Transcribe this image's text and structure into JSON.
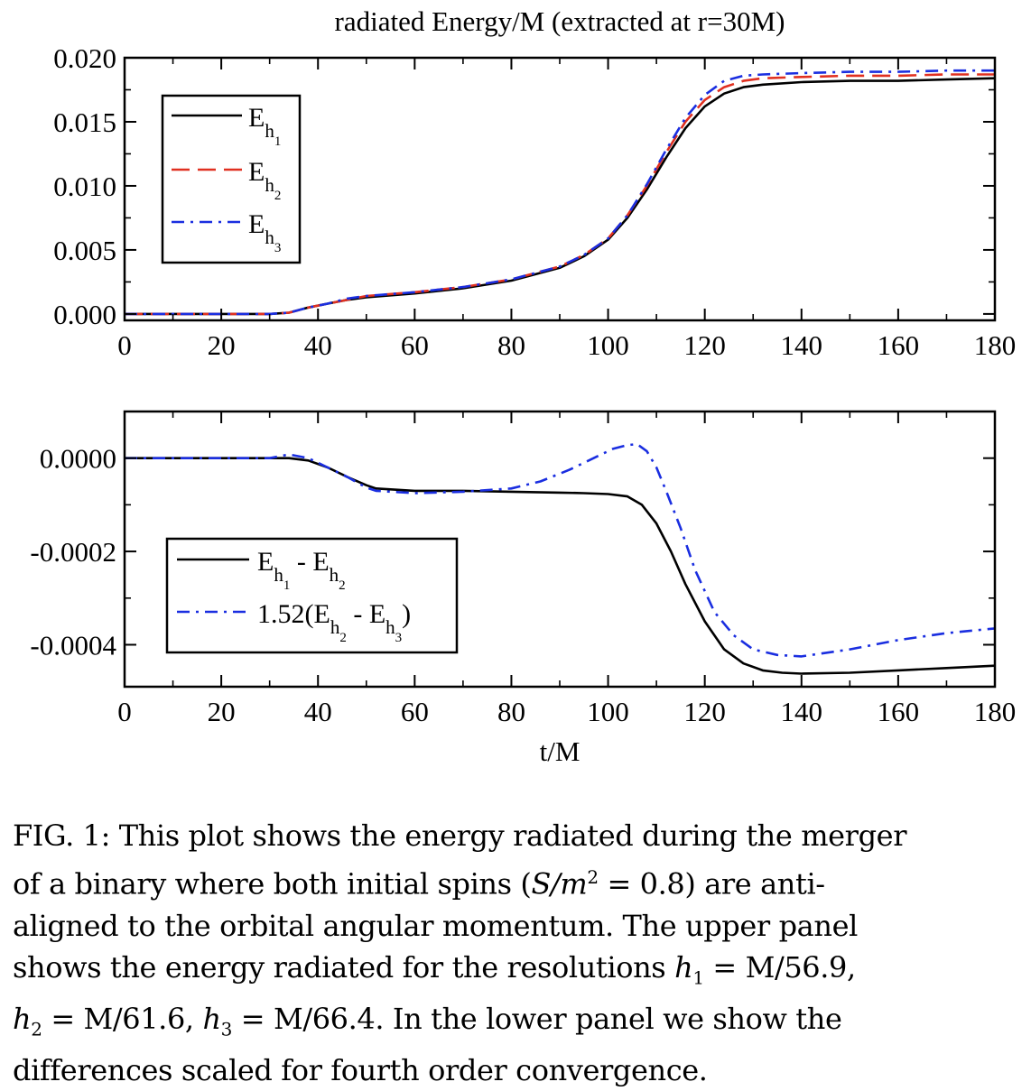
{
  "chart_data": [
    {
      "type": "line",
      "title": "radiated Energy/M (extracted at r=30M)",
      "xlabel": "",
      "ylabel": "",
      "xlim": [
        0,
        180
      ],
      "ylim": [
        -0.0005,
        0.02
      ],
      "xticks": [
        "0",
        "20",
        "40",
        "60",
        "80",
        "100",
        "120",
        "140",
        "160",
        "180"
      ],
      "yticks": [
        "0.000",
        "0.005",
        "0.010",
        "0.015",
        "0.020"
      ],
      "legend_position": "top-left",
      "grid": false,
      "series": [
        {
          "name": "E_h1",
          "legend_main": "E",
          "legend_sub": "h",
          "legend_subsub": "1",
          "color": "#000000",
          "dash": "solid",
          "x": [
            0,
            20,
            30,
            34,
            38,
            42,
            46,
            50,
            60,
            70,
            80,
            90,
            95,
            100,
            104,
            108,
            112,
            116,
            120,
            124,
            128,
            132,
            140,
            150,
            160,
            170,
            180
          ],
          "y": [
            0.0,
            0.0,
            0.0,
            0.0001,
            0.0005,
            0.0008,
            0.0011,
            0.0013,
            0.0016,
            0.002,
            0.0026,
            0.0036,
            0.0045,
            0.0058,
            0.0075,
            0.0097,
            0.0122,
            0.0145,
            0.0162,
            0.0172,
            0.0177,
            0.0179,
            0.0181,
            0.0182,
            0.0182,
            0.0183,
            0.0184
          ]
        },
        {
          "name": "E_h2",
          "legend_main": "E",
          "legend_sub": "h",
          "legend_subsub": "2",
          "color": "#e03020",
          "dash": "dashed",
          "x": [
            0,
            20,
            30,
            34,
            38,
            42,
            46,
            50,
            60,
            70,
            80,
            90,
            95,
            100,
            104,
            108,
            112,
            116,
            120,
            124,
            128,
            132,
            140,
            150,
            160,
            170,
            180
          ],
          "y": [
            0.0,
            0.0,
            0.0,
            0.0001,
            0.0005,
            0.0008,
            0.0011,
            0.0014,
            0.0017,
            0.0021,
            0.0027,
            0.0037,
            0.0046,
            0.0059,
            0.0077,
            0.01,
            0.0126,
            0.015,
            0.0167,
            0.0177,
            0.0182,
            0.0184,
            0.0185,
            0.0186,
            0.0186,
            0.0187,
            0.0187
          ]
        },
        {
          "name": "E_h3",
          "legend_main": "E",
          "legend_sub": "h",
          "legend_subsub": "3",
          "color": "#1a2ee0",
          "dash": "dashdot",
          "x": [
            0,
            20,
            30,
            34,
            38,
            42,
            46,
            50,
            60,
            70,
            80,
            90,
            95,
            100,
            104,
            108,
            112,
            116,
            120,
            124,
            128,
            132,
            140,
            150,
            160,
            170,
            180
          ],
          "y": [
            0.0,
            0.0,
            0.0,
            0.0001,
            0.0005,
            0.0008,
            0.0012,
            0.0014,
            0.0017,
            0.0021,
            0.0027,
            0.0037,
            0.0046,
            0.0059,
            0.0077,
            0.0101,
            0.0128,
            0.0153,
            0.0171,
            0.0182,
            0.0186,
            0.0187,
            0.0188,
            0.0189,
            0.0189,
            0.019,
            0.019
          ]
        }
      ]
    },
    {
      "type": "line",
      "title": "",
      "xlabel": "t/M",
      "ylabel": "",
      "xlim": [
        0,
        180
      ],
      "ylim": [
        -0.00049,
        0.0001
      ],
      "xticks": [
        "0",
        "20",
        "40",
        "60",
        "80",
        "100",
        "120",
        "140",
        "160",
        "180"
      ],
      "yticks": [
        "0.0000",
        "-0.0002",
        "-0.0004"
      ],
      "legend_position": "bottom-left",
      "grid": false,
      "series": [
        {
          "name": "E_h1 - E_h2",
          "legend_parts": [
            "E",
            "h",
            "1",
            " - E",
            "h",
            "2"
          ],
          "color": "#000000",
          "dash": "solid",
          "x": [
            0,
            20,
            30,
            34,
            38,
            42,
            46,
            50,
            52,
            60,
            70,
            80,
            90,
            95,
            100,
            104,
            107,
            110,
            113,
            116,
            120,
            124,
            128,
            132,
            136,
            140,
            150,
            160,
            170,
            180
          ],
          "y": [
            0.0,
            0.0,
            0.0,
            0.0,
            -5e-06,
            -2e-05,
            -4e-05,
            -5.8e-05,
            -6.5e-05,
            -7e-05,
            -7e-05,
            -7.2e-05,
            -7.4e-05,
            -7.5e-05,
            -7.7e-05,
            -8.2e-05,
            -0.0001,
            -0.00014,
            -0.0002,
            -0.00027,
            -0.00035,
            -0.00041,
            -0.00044,
            -0.000455,
            -0.00046,
            -0.000462,
            -0.00046,
            -0.000455,
            -0.00045,
            -0.000445
          ]
        },
        {
          "name": "1.52(E_h2 - E_h3)",
          "legend_parts": [
            "1.52(E",
            "h",
            "2",
            " - E",
            "h",
            "3",
            ")"
          ],
          "color": "#1a2ee0",
          "dash": "dashdot",
          "x": [
            0,
            20,
            30,
            34,
            38,
            42,
            46,
            50,
            52,
            60,
            70,
            80,
            86,
            92,
            97,
            101,
            104,
            106,
            108,
            110,
            112,
            115,
            118,
            122,
            126,
            130,
            135,
            140,
            150,
            160,
            170,
            180
          ],
          "y": [
            0.0,
            0.0,
            0.0,
            8e-06,
            0.0,
            -2e-05,
            -4e-05,
            -6.3e-05,
            -7e-05,
            -7.5e-05,
            -7.2e-05,
            -6.5e-05,
            -5e-05,
            -2.5e-05,
            0.0,
            2e-05,
            2.8e-05,
            3e-05,
            1.5e-05,
            -2e-05,
            -7e-05,
            -0.00015,
            -0.00024,
            -0.00033,
            -0.00038,
            -0.00041,
            -0.000422,
            -0.000425,
            -0.00041,
            -0.00039,
            -0.000375,
            -0.000365
          ]
        }
      ]
    }
  ],
  "caption": {
    "line1": "FIG. 1: This plot shows the energy radiated during the merger",
    "line2a": "of a binary where both initial spins (",
    "line2m": "S/m",
    "line2sup": "2",
    "line2b": " = 0.8) are anti-",
    "line3": "aligned to the orbital angular momentum.  The upper panel",
    "line4a": "shows the energy radiated for the resolutions ",
    "line4m": "h",
    "line4s": "1",
    "line4b": " = M/56.9,",
    "line5m1": "h",
    "line5s1": "2",
    "line5b": " = M/61.6, ",
    "line5m2": "h",
    "line5s2": "3",
    "line5c": " = M/66.4.  In the lower panel we show the",
    "line6": "differences scaled for fourth order convergence."
  }
}
